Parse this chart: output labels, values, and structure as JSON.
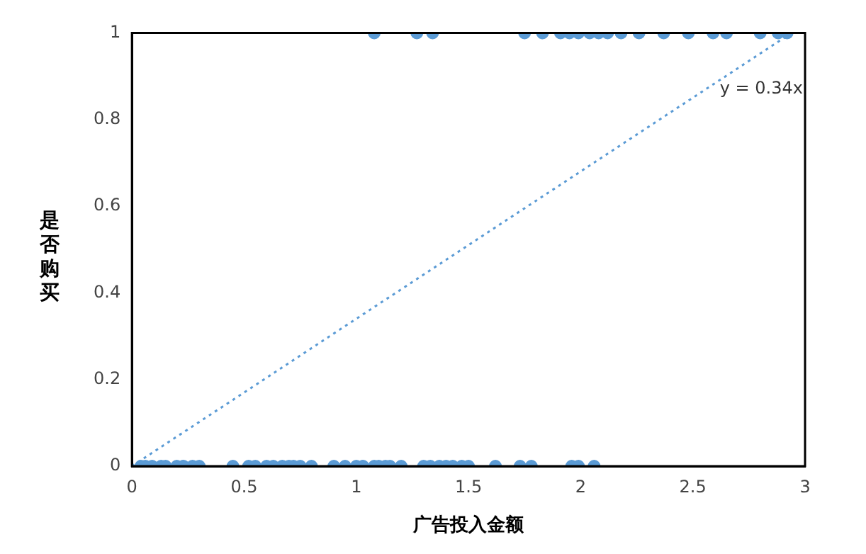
{
  "chart_data": {
    "type": "scatter",
    "xlabel": "广告投入金额",
    "ylabel": "是否购买",
    "xlim": [
      0,
      3
    ],
    "xticks": [
      0,
      0.5,
      1,
      1.5,
      2,
      2.5,
      3
    ],
    "ylim": [
      0,
      1
    ],
    "yticks": [
      0,
      0.2,
      0.4,
      0.6,
      0.8,
      1
    ],
    "grid": false,
    "legend": false,
    "marker": "circle",
    "series": [
      {
        "color": "#5b9bd5",
        "x": [
          0.04,
          0.06,
          0.09,
          0.13,
          0.15,
          0.2,
          0.23,
          0.27,
          0.3,
          0.45,
          0.52,
          0.55,
          0.6,
          0.63,
          0.67,
          0.7,
          0.72,
          0.75,
          0.8,
          0.9,
          0.95,
          1.0,
          1.03,
          1.08,
          1.1,
          1.13,
          1.15,
          1.2,
          1.3,
          1.33,
          1.37,
          1.4,
          1.43,
          1.47,
          1.5,
          1.62,
          1.73,
          1.78,
          1.96,
          1.99,
          2.06
        ],
        "values": [
          0,
          0,
          0,
          0,
          0,
          0,
          0,
          0,
          0,
          0,
          0,
          0,
          0,
          0,
          0,
          0,
          0,
          0,
          0,
          0,
          0,
          0,
          0,
          0,
          0,
          0,
          0,
          0,
          0,
          0,
          0,
          0,
          0,
          0,
          0,
          0,
          0,
          0,
          0,
          0,
          0
        ]
      },
      {
        "color": "#5b9bd5",
        "x": [
          1.08,
          1.27,
          1.34,
          1.75,
          1.83,
          1.91,
          1.95,
          1.99,
          2.04,
          2.08,
          2.12,
          2.18,
          2.26,
          2.37,
          2.48,
          2.59,
          2.65,
          2.8,
          2.88,
          2.92
        ],
        "values": [
          1,
          1,
          1,
          1,
          1,
          1,
          1,
          1,
          1,
          1,
          1,
          1,
          1,
          1,
          1,
          1,
          1,
          1,
          1,
          1
        ]
      },
      {
        "type": "line",
        "color": "#5b9bd5",
        "line_style": "dotted",
        "marker": "none",
        "x": [
          0,
          2.94
        ],
        "values": [
          0,
          1
        ]
      }
    ],
    "annotations": [
      {
        "text": "y = 0.34x",
        "x": 2.62,
        "y": 0.87
      }
    ]
  }
}
